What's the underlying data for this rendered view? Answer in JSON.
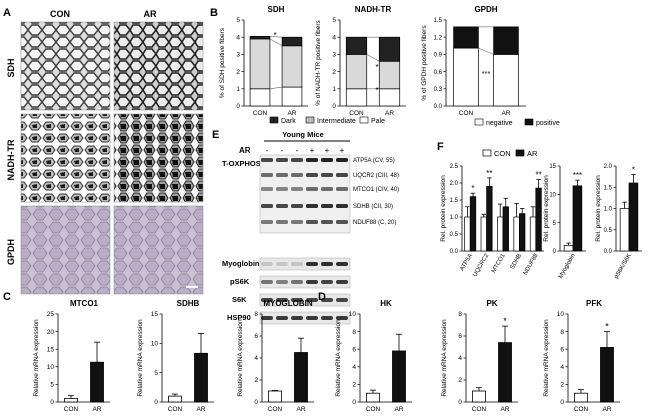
{
  "panels": {
    "A": {
      "label": "A",
      "col_con": "CON",
      "col_ar": "AR",
      "rows": [
        "SDH",
        "NADH-TR",
        "GPDH"
      ]
    },
    "B": {
      "label": "B",
      "legend": [
        "Dark",
        "Intermediate",
        "Pale",
        "negative",
        "positive"
      ]
    },
    "C": {
      "label": "C"
    },
    "D": {
      "label": "D"
    },
    "E": {
      "label": "E",
      "group": "Young Mice",
      "ar_label": "AR",
      "ar_marks": [
        "-",
        "-",
        "-",
        "+",
        "+",
        "+"
      ],
      "row_labels": [
        "T-OXPHOS",
        "Myoglobin",
        "pS6K",
        "S6K",
        "HSP90"
      ],
      "oxphos": [
        "ATP5A (CV, 55)",
        "UQCR2 (CIII, 48)",
        "MTCO1 (CIV, 40)",
        "SDHB (CII, 30)",
        "NDUF88 (C, 20)"
      ]
    },
    "F": {
      "label": "F",
      "legend": [
        "CON",
        "AR"
      ]
    }
  },
  "chart_data": [
    {
      "id": "B-SDH",
      "type": "bar",
      "stacked": true,
      "title": "SDH",
      "ylabel": "% of SDH positive fibers",
      "categories": [
        "CON",
        "AR"
      ],
      "ylim": [
        0,
        5
      ],
      "yticks": [
        "0",
        "1",
        "2",
        "3",
        "4",
        "5"
      ],
      "annotations": [
        "*"
      ],
      "series": [
        {
          "name": "Pale",
          "values": [
            1.0,
            1.1
          ]
        },
        {
          "name": "Intermediate",
          "values": [
            2.9,
            2.4
          ]
        },
        {
          "name": "Dark",
          "values": [
            0.15,
            0.5
          ]
        }
      ]
    },
    {
      "id": "B-NADH",
      "type": "bar",
      "stacked": true,
      "title": "NADH-TR",
      "ylabel": "% of NADH-TR positive fibers",
      "categories": [
        "CON",
        "AR"
      ],
      "ylim": [
        0,
        5
      ],
      "yticks": [
        "0",
        "1",
        "2",
        "3",
        "4",
        "5"
      ],
      "annotations": [
        "*",
        "*"
      ],
      "series": [
        {
          "name": "Pale",
          "values": [
            1.0,
            1.0
          ]
        },
        {
          "name": "Intermediate",
          "values": [
            2.0,
            1.6
          ]
        },
        {
          "name": "Dark",
          "values": [
            1.0,
            1.4
          ]
        }
      ]
    },
    {
      "id": "B-GPDH",
      "type": "bar",
      "stacked": true,
      "title": "GPDH",
      "ylabel": "% of GPDH positive fibers",
      "categories": [
        "CON",
        "AR"
      ],
      "ylim": [
        0,
        1.5
      ],
      "yticks": [
        "0.0",
        "0.3",
        "0.6",
        "0.9",
        "1.2",
        "1.5"
      ],
      "annotations": [
        "***",
        "***"
      ],
      "series": [
        {
          "name": "negative",
          "values": [
            1.01,
            0.9
          ]
        },
        {
          "name": "positive",
          "values": [
            0.37,
            0.48
          ]
        }
      ]
    },
    {
      "id": "C-MTCO1",
      "type": "bar",
      "title": "MTCO1",
      "ylabel": "Relative mRNA expression",
      "categories": [
        "CON",
        "AR"
      ],
      "values": [
        1.0,
        11.3
      ],
      "errors": [
        0.8,
        5.7
      ],
      "ylim": [
        0,
        25
      ],
      "yticks": [
        "0",
        "5",
        "10",
        "15",
        "20",
        "25"
      ],
      "annotations": [
        "",
        ""
      ]
    },
    {
      "id": "C-SDHB",
      "type": "bar",
      "title": "SDHB",
      "ylabel": "Relative mRNA expression",
      "categories": [
        "CON",
        "AR"
      ],
      "values": [
        1.0,
        8.3
      ],
      "errors": [
        0.35,
        3.4
      ],
      "ylim": [
        0,
        15
      ],
      "yticks": [
        "0",
        "5",
        "10",
        "15"
      ],
      "annotations": [
        "",
        ""
      ]
    },
    {
      "id": "C-MYOGLOBIN",
      "type": "bar",
      "title": "MYOGLOBIN",
      "ylabel": "Relative mRNA expression",
      "categories": [
        "CON",
        "AR"
      ],
      "values": [
        1.0,
        4.5
      ],
      "errors": [
        0.05,
        1.3
      ],
      "ylim": [
        0,
        8
      ],
      "yticks": [
        "0",
        "2",
        "4",
        "6",
        "8"
      ],
      "annotations": [
        "",
        ""
      ]
    },
    {
      "id": "D-HK",
      "type": "bar",
      "title": "HK",
      "ylabel": "Relative mRNA expression",
      "categories": [
        "CON",
        "AR"
      ],
      "values": [
        1.0,
        5.8
      ],
      "errors": [
        0.35,
        1.9
      ],
      "ylim": [
        0,
        10
      ],
      "yticks": [
        "0",
        "2",
        "4",
        "6",
        "8",
        "10"
      ],
      "annotations": [
        "",
        ""
      ]
    },
    {
      "id": "D-PK",
      "type": "bar",
      "title": "PK",
      "ylabel": "Relative mRNA expression",
      "categories": [
        "CON",
        "AR"
      ],
      "values": [
        1.0,
        5.4
      ],
      "errors": [
        0.3,
        1.5
      ],
      "ylim": [
        0,
        8
      ],
      "yticks": [
        "0",
        "2",
        "4",
        "6",
        "8"
      ],
      "annotations": [
        "",
        "*"
      ]
    },
    {
      "id": "D-PFK",
      "type": "bar",
      "title": "PFK",
      "ylabel": "Relative mRNA expression",
      "categories": [
        "CON",
        "AR"
      ],
      "values": [
        1.0,
        6.2
      ],
      "errors": [
        0.4,
        1.8
      ],
      "ylim": [
        0,
        10
      ],
      "yticks": [
        "0",
        "2",
        "4",
        "6",
        "8",
        "10"
      ],
      "annotations": [
        "",
        "*"
      ]
    },
    {
      "id": "F-OXPHOS",
      "type": "bar",
      "ylabel": "Rel. protein expression",
      "categories": [
        "ATP5A",
        "UQCRC2",
        "MTCO1",
        "SDHB",
        "NDUF88"
      ],
      "series": [
        {
          "name": "CON",
          "values": [
            1.0,
            1.0,
            1.0,
            1.0,
            1.0
          ],
          "errors": [
            0.3,
            0.08,
            0.38,
            0.4,
            0.3
          ]
        },
        {
          "name": "AR",
          "values": [
            1.6,
            1.9,
            1.3,
            1.1,
            1.85
          ],
          "errors": [
            0.1,
            0.25,
            0.25,
            0.15,
            0.25
          ]
        }
      ],
      "ylim": [
        0,
        2.5
      ],
      "yticks": [
        "0.0",
        "0.5",
        "1.0",
        "1.5",
        "2.0",
        "2.5"
      ],
      "annotations": [
        "*",
        "**",
        "",
        "",
        "**"
      ]
    },
    {
      "id": "F-Myoglobin",
      "type": "bar",
      "ylabel": "Rel. protein expression",
      "categories": [
        "Myoglobin"
      ],
      "series": [
        {
          "name": "CON",
          "values": [
            1.0
          ],
          "errors": [
            0.4
          ]
        },
        {
          "name": "AR",
          "values": [
            11.5
          ],
          "errors": [
            1.0
          ]
        }
      ],
      "ylim": [
        0,
        15
      ],
      "yticks": [
        "0",
        "5",
        "10",
        "15"
      ],
      "annotations": [
        "***"
      ]
    },
    {
      "id": "F-pS6K",
      "type": "bar",
      "ylabel": "Rel. protein expression",
      "categories": [
        "pS6K/S6K"
      ],
      "series": [
        {
          "name": "CON",
          "values": [
            1.0
          ],
          "errors": [
            0.15
          ]
        },
        {
          "name": "AR",
          "values": [
            1.6
          ],
          "errors": [
            0.2
          ]
        }
      ],
      "ylim": [
        0,
        2.0
      ],
      "yticks": [
        "0.0",
        "0.5",
        "1.0",
        "1.5",
        "2.0"
      ],
      "annotations": [
        "*"
      ]
    }
  ]
}
